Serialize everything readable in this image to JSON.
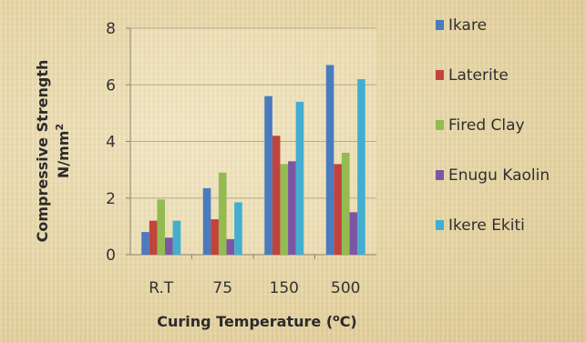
{
  "chart_data": {
    "type": "bar",
    "categories": [
      "R.T",
      "75",
      "150",
      "500"
    ],
    "series": [
      {
        "name": "Ikare",
        "values": [
          0.8,
          2.35,
          5.6,
          6.7
        ]
      },
      {
        "name": "Laterite",
        "values": [
          1.2,
          1.25,
          4.2,
          3.2
        ]
      },
      {
        "name": "Fired Clay",
        "values": [
          1.95,
          2.9,
          3.2,
          3.6
        ]
      },
      {
        "name": "Enugu Kaolin",
        "values": [
          0.6,
          0.55,
          3.3,
          1.5
        ]
      },
      {
        "name": "Ikere Ekiti",
        "values": [
          1.2,
          1.85,
          5.4,
          6.2
        ]
      }
    ],
    "ylabel_line1": "Compressive Strength",
    "ylabel_line2_base": "N/mm",
    "ylabel_line2_sup": "2",
    "xlabel_base": "Curing Temperature (",
    "xlabel_sup": "o",
    "xlabel_end": "C)",
    "ylim": [
      0,
      8
    ],
    "yticks": [
      "0",
      "2",
      "4",
      "6",
      "8"
    ],
    "grid": "horizontal",
    "legend_position": "right",
    "colors": [
      "#4a7bbf",
      "#c0443d",
      "#93bb52",
      "#7b57a3",
      "#43aecf"
    ]
  }
}
